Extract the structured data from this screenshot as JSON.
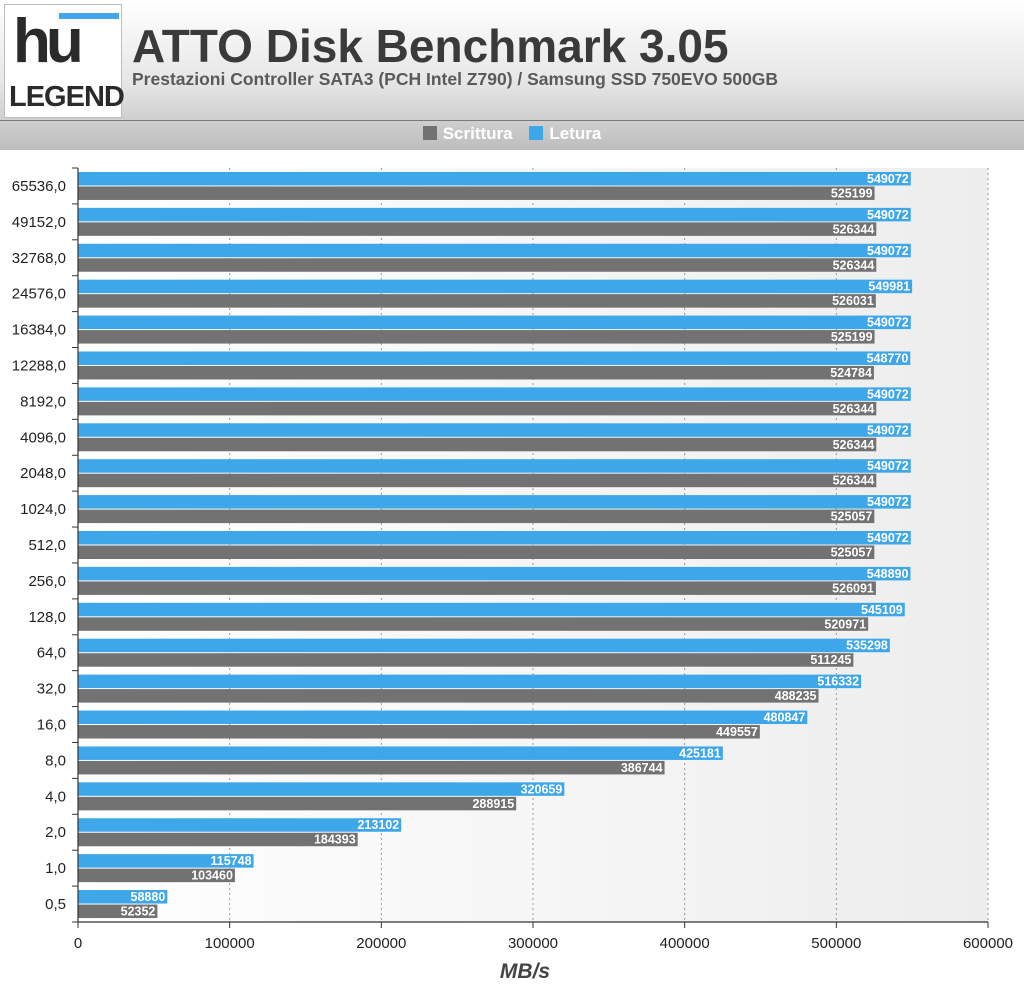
{
  "brand": {
    "logo_top": "hu",
    "logo_bottom": "LEGEND"
  },
  "colors": {
    "write": "#727272",
    "read": "#3ea7ea",
    "axis": "#333333",
    "header": "#d9d9d9"
  },
  "chart_data": {
    "type": "bar",
    "orientation": "horizontal",
    "title": "ATTO Disk Benchmark 3.05",
    "subtitle": "Prestazioni Controller SATA3 (PCH Intel Z790) / Samsung SSD 750EVO 500GB",
    "xlabel": "MB/s",
    "ylabel": "",
    "xlim": [
      0,
      600000
    ],
    "xticks": [
      "0",
      "100000",
      "200000",
      "300000",
      "400000",
      "500000",
      "600000"
    ],
    "legend_position": "top",
    "grid": true,
    "categories": [
      "65536,0",
      "49152,0",
      "32768,0",
      "24576,0",
      "16384,0",
      "12288,0",
      "8192,0",
      "4096,0",
      "2048,0",
      "1024,0",
      "512,0",
      "256,0",
      "128,0",
      "64,0",
      "32,0",
      "16,0",
      "8,0",
      "4,0",
      "2,0",
      "1,0",
      "0,5"
    ],
    "series": [
      {
        "name": "Scrittura",
        "color": "#727272",
        "values": [
          525199,
          526344,
          526344,
          526031,
          525199,
          524784,
          526344,
          526344,
          526344,
          525057,
          525057,
          526091,
          520971,
          511245,
          488235,
          449557,
          386744,
          288915,
          184393,
          103460,
          52352
        ]
      },
      {
        "name": "Letura",
        "color": "#3ea7ea",
        "values": [
          549072,
          549072,
          549072,
          549981,
          549072,
          548770,
          549072,
          549072,
          549072,
          549072,
          549072,
          548890,
          545109,
          535298,
          516332,
          480847,
          425181,
          320659,
          213102,
          115748,
          58880
        ]
      }
    ]
  }
}
